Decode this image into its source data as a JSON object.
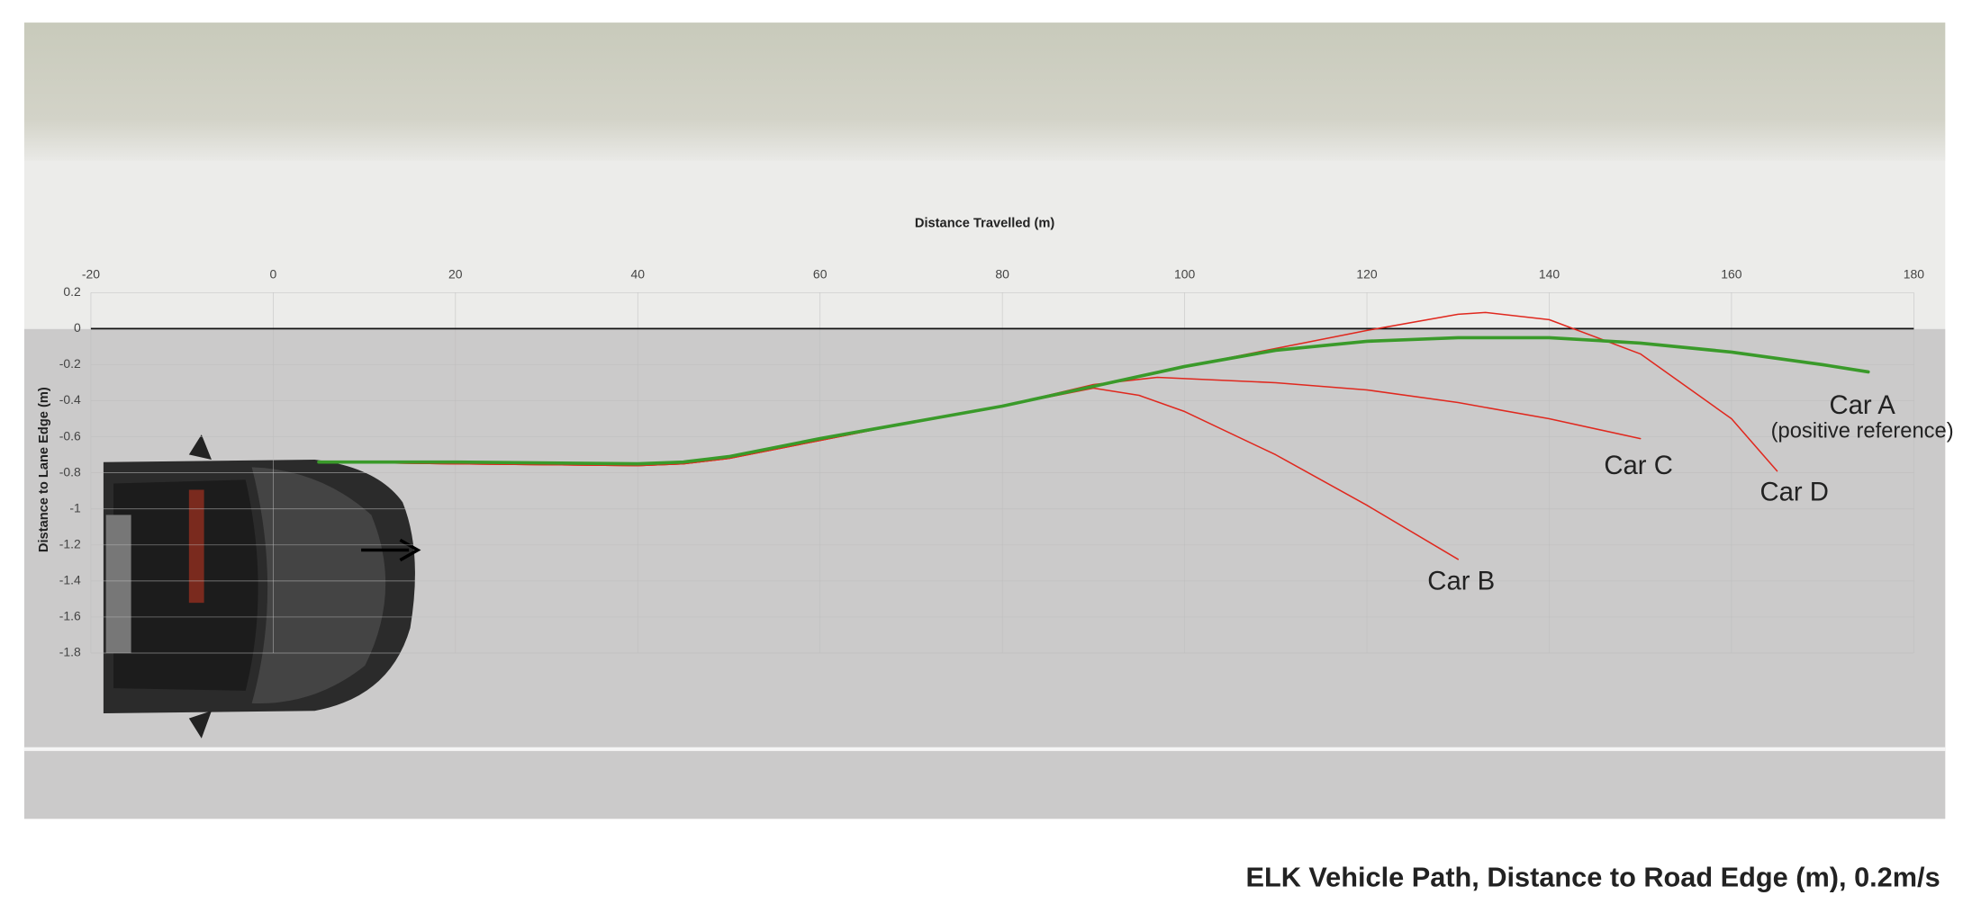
{
  "chart_data": {
    "type": "line",
    "title": "ELK Vehicle Path, Distance to Road Edge (m), 0.2m/s",
    "x_label": "Distance Travelled (m)",
    "y_label": "Distance to Lane Edge (m)",
    "xlim": [
      -20,
      180
    ],
    "xticks": [
      -20,
      0,
      20,
      40,
      60,
      80,
      100,
      120,
      140,
      160,
      180
    ],
    "ylim": [
      -1.8,
      0.2
    ],
    "yticks": [
      0.2,
      0,
      -0.2,
      -0.4,
      -0.6,
      -0.8,
      -1,
      -1.2,
      -1.4,
      -1.6,
      -1.8
    ],
    "grid": true,
    "series": [
      {
        "name": "Car A",
        "color": "#3a9a2a",
        "x": [
          5,
          20,
          40,
          45,
          50,
          60,
          70,
          80,
          90,
          100,
          110,
          120,
          130,
          140,
          150,
          160,
          170,
          175
        ],
        "values": [
          -0.74,
          -0.74,
          -0.75,
          -0.74,
          -0.71,
          -0.61,
          -0.52,
          -0.43,
          -0.32,
          -0.21,
          -0.12,
          -0.07,
          -0.05,
          -0.05,
          -0.08,
          -0.13,
          -0.2,
          -0.24
        ]
      },
      {
        "name": "Car B",
        "color": "#e0281e",
        "x": [
          5,
          20,
          40,
          45,
          50,
          60,
          70,
          80,
          90,
          95,
          100,
          110,
          120,
          130
        ],
        "values": [
          -0.74,
          -0.75,
          -0.76,
          -0.75,
          -0.72,
          -0.62,
          -0.52,
          -0.43,
          -0.33,
          -0.37,
          -0.46,
          -0.7,
          -0.98,
          -1.28
        ]
      },
      {
        "name": "Car C",
        "color": "#e0281e",
        "x": [
          5,
          20,
          40,
          45,
          50,
          60,
          70,
          80,
          90,
          97,
          110,
          120,
          130,
          140,
          150
        ],
        "values": [
          -0.74,
          -0.75,
          -0.76,
          -0.75,
          -0.72,
          -0.62,
          -0.52,
          -0.43,
          -0.31,
          -0.27,
          -0.3,
          -0.34,
          -0.41,
          -0.5,
          -0.61
        ]
      },
      {
        "name": "Car D",
        "color": "#e0281e",
        "x": [
          5,
          20,
          40,
          45,
          50,
          60,
          70,
          80,
          90,
          100,
          110,
          120,
          130,
          133,
          140,
          150,
          160,
          165
        ],
        "values": [
          -0.74,
          -0.75,
          -0.76,
          -0.75,
          -0.72,
          -0.62,
          -0.52,
          -0.43,
          -0.32,
          -0.21,
          -0.11,
          -0.01,
          0.08,
          0.09,
          0.05,
          -0.14,
          -0.5,
          -0.79
        ]
      }
    ],
    "annotations": [
      "Car A",
      "(positive reference)",
      "Car C",
      "Car D",
      "Car B"
    ]
  }
}
